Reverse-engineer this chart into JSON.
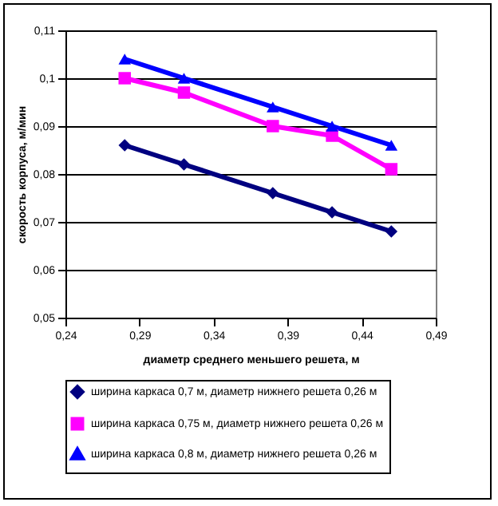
{
  "chart_data": {
    "type": "line",
    "xlabel": "диаметр среднего меньшего решета, м",
    "ylabel": "скорость корпуса, м/мин",
    "x": [
      0.28,
      0.32,
      0.38,
      0.42,
      0.46
    ],
    "series": [
      {
        "name": "ширина каркаса 0,7 м, диаметр нижнего  решета 0,26 м",
        "color": "#000080",
        "marker": "diamond",
        "values": [
          0.086,
          0.082,
          0.076,
          0.072,
          0.068
        ]
      },
      {
        "name": "ширина каркаса 0,75 м, диаметр нижнего решета 0,26 м",
        "color": "#ff00ff",
        "marker": "square",
        "values": [
          0.1,
          0.097,
          0.09,
          0.088,
          0.081
        ]
      },
      {
        "name": "ширина каркаса 0,8 м, диаметр нижнего решета 0,26 м",
        "color": "#0000ff",
        "marker": "triangle",
        "values": [
          0.104,
          0.1,
          0.094,
          0.09,
          0.086
        ]
      }
    ],
    "xlim": [
      0.24,
      0.49
    ],
    "xticks": [
      {
        "value": 0.24,
        "label": "0,24"
      },
      {
        "value": 0.29,
        "label": "0,29"
      },
      {
        "value": 0.34,
        "label": "0,34"
      },
      {
        "value": 0.39,
        "label": "0,39"
      },
      {
        "value": 0.44,
        "label": "0,44"
      },
      {
        "value": 0.49,
        "label": "0,49"
      }
    ],
    "ylim": [
      0.05,
      0.11
    ],
    "yticks": [
      {
        "value": 0.05,
        "label": "0,05"
      },
      {
        "value": 0.06,
        "label": "0,06"
      },
      {
        "value": 0.07,
        "label": "0,07"
      },
      {
        "value": 0.08,
        "label": "0,08"
      },
      {
        "value": 0.09,
        "label": "0,09"
      },
      {
        "value": 0.1,
        "label": "0,1"
      },
      {
        "value": 0.11,
        "label": "0,11"
      }
    ],
    "grid": "y",
    "legend": "bottom"
  }
}
